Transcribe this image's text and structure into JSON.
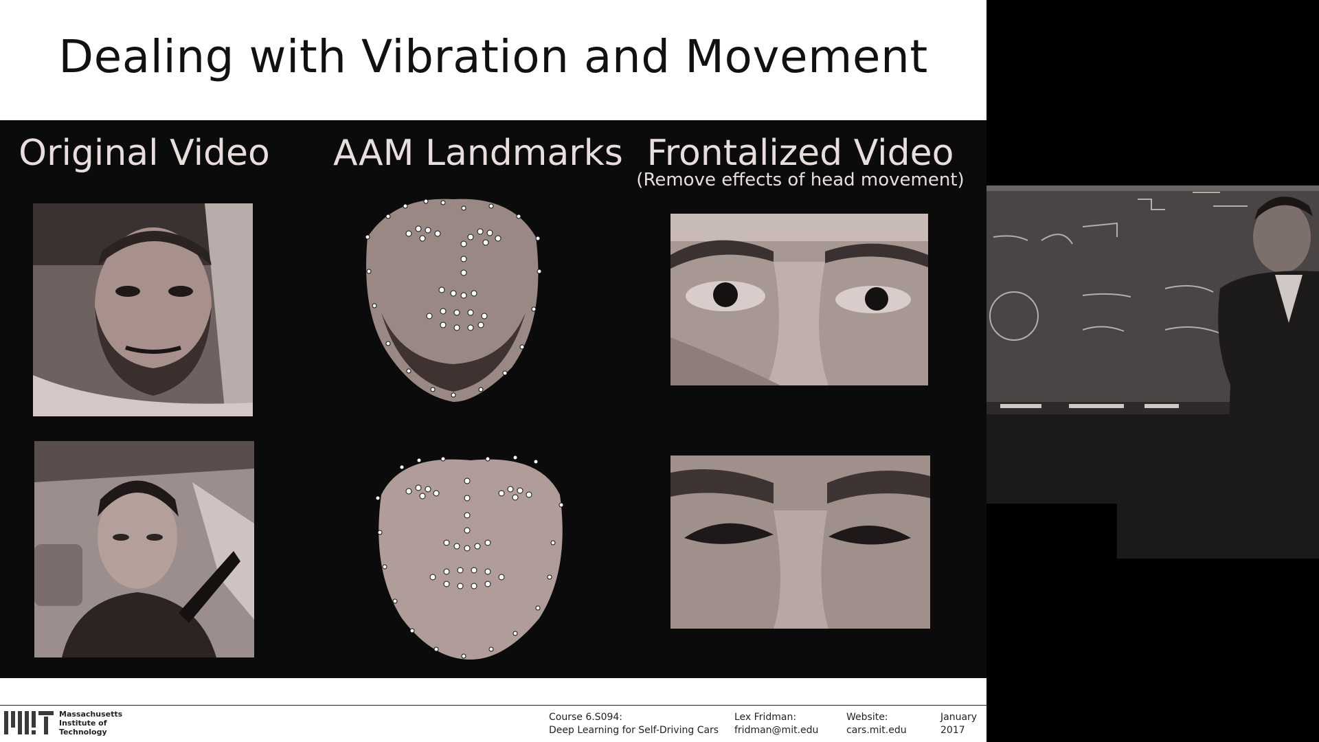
{
  "slide": {
    "title": "Dealing with Vibration and Movement",
    "columns": {
      "original": {
        "heading": "Original Video"
      },
      "landmarks": {
        "heading": "AAM Landmarks"
      },
      "frontalized": {
        "heading": "Frontalized Video",
        "subheading": "(Remove effects of head movement)"
      }
    }
  },
  "footer": {
    "institution": [
      "Massachusetts",
      "Institute of",
      "Technology"
    ],
    "course_label": "Course 6.S094:",
    "course_name": "Deep Learning for Self-Driving Cars",
    "author_label": "Lex Fridman:",
    "author_email": "fridman@mit.edu",
    "website_label": "Website:",
    "website_url": "cars.mit.edu",
    "date_month": "January",
    "date_year": "2017"
  },
  "colors": {
    "panel_background": "#0c0b0b",
    "heading_text": "#e8dede",
    "photo_tone": "#8a7c7a"
  },
  "icons": {
    "logo": "mit-logo"
  }
}
